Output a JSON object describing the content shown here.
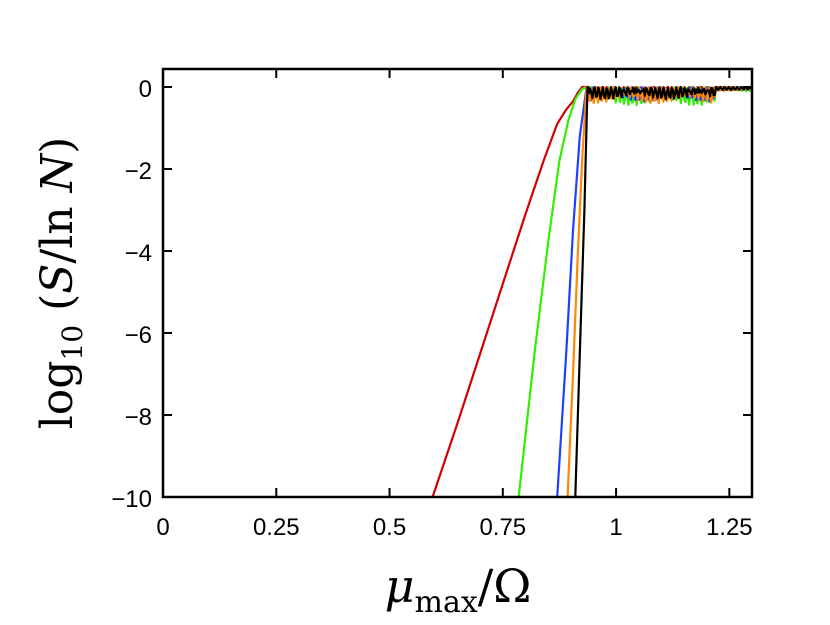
{
  "chart_data": {
    "type": "line",
    "title": "",
    "xlabel": "μ_max/Ω",
    "ylabel": "log10(S/ln N)",
    "xlim": [
      0,
      1.3
    ],
    "ylim": [
      -10,
      0.25
    ],
    "x_ticks": [
      0,
      0.25,
      0.5,
      0.75,
      1,
      1.25
    ],
    "x_tick_labels": [
      "0",
      "0.25",
      "0.5",
      "0.75",
      "1",
      "1.25"
    ],
    "y_ticks": [
      0,
      -2,
      -4,
      -6,
      -8,
      -10
    ],
    "y_tick_labels": [
      "0",
      "−2",
      "−4",
      "−6",
      "−8",
      "−10"
    ],
    "grid": false,
    "series": [
      {
        "color": "#d40000",
        "x": [
          0.595,
          0.65,
          0.7,
          0.75,
          0.8,
          0.84,
          0.87,
          0.89,
          0.905,
          0.915,
          0.925,
          0.94,
          1.0,
          1.1,
          1.2,
          1.3
        ],
        "y": [
          -10,
          -8.2,
          -6.5,
          -4.8,
          -3.1,
          -1.8,
          -0.9,
          -0.55,
          -0.35,
          -0.15,
          0,
          0,
          0,
          0,
          0,
          0
        ]
      },
      {
        "color": "#33ee00",
        "x": [
          0.785,
          0.82,
          0.85,
          0.875,
          0.895,
          0.91,
          0.925,
          0.935
        ],
        "y": [
          -10,
          -6.5,
          -3.8,
          -1.8,
          -0.8,
          -0.3,
          -0.05,
          0
        ]
      },
      {
        "color": "#1f3fff",
        "x": [
          0.87,
          0.89,
          0.905,
          0.92,
          0.935
        ],
        "y": [
          -10,
          -6.5,
          -3.5,
          -1.2,
          0
        ]
      },
      {
        "color": "#ff8800",
        "x": [
          0.893,
          0.905,
          0.915,
          0.925,
          0.935
        ],
        "y": [
          -10,
          -7.0,
          -4.2,
          -1.8,
          0
        ]
      },
      {
        "color": "#000000",
        "x": [
          0.91,
          0.92,
          0.93,
          0.937
        ],
        "y": [
          -10,
          -6.5,
          -3.0,
          0
        ]
      }
    ]
  }
}
